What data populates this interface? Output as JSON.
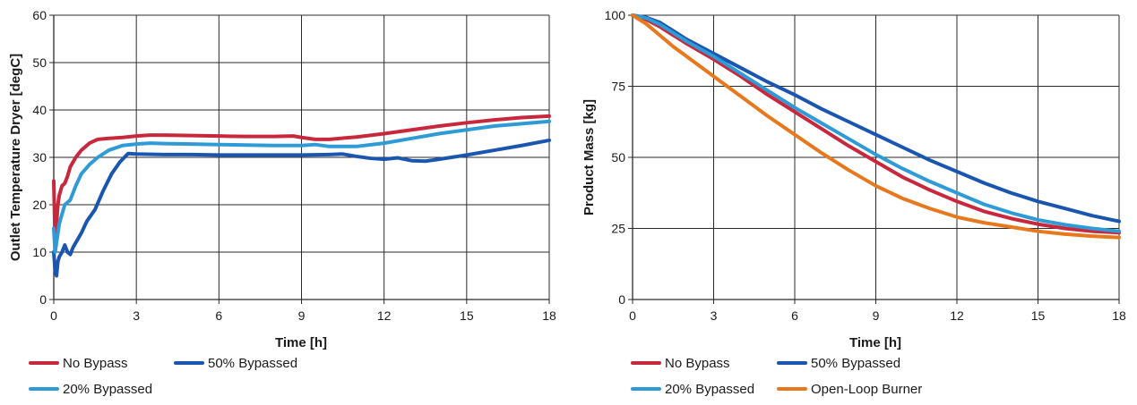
{
  "colors": {
    "no_bypass": "#c8283c",
    "bypass_50": "#1a56b0",
    "bypass_20": "#2e9bd6",
    "open_loop": "#e8781e",
    "grid": "#2a2a2a"
  },
  "chart_data": [
    {
      "type": "line",
      "xlabel": "Time [h]",
      "ylabel": "Outlet Temperature Dryer [degC]",
      "xlim": [
        0,
        18
      ],
      "ylim": [
        0,
        60
      ],
      "xticks": [
        0,
        3,
        6,
        9,
        12,
        15,
        18
      ],
      "yticks": [
        0,
        10,
        20,
        30,
        40,
        50,
        60
      ],
      "grid": true,
      "legend": "bottom",
      "series": [
        {
          "name": "No Bypass",
          "color_key": "no_bypass",
          "x": [
            0,
            0.05,
            0.1,
            0.15,
            0.2,
            0.3,
            0.4,
            0.5,
            0.6,
            0.8,
            1,
            1.3,
            1.6,
            2,
            2.5,
            3,
            3.5,
            4,
            5,
            6,
            7,
            8,
            8.7,
            9,
            9.5,
            10,
            11,
            12,
            13,
            14,
            15,
            16,
            17,
            18
          ],
          "y": [
            25,
            12,
            16,
            20,
            22,
            24,
            24.5,
            26,
            28,
            30,
            31.5,
            33,
            33.8,
            34,
            34.2,
            34.5,
            34.7,
            34.7,
            34.6,
            34.5,
            34.4,
            34.4,
            34.5,
            34.2,
            33.8,
            33.8,
            34.3,
            35,
            35.8,
            36.6,
            37.3,
            37.9,
            38.4,
            38.7
          ]
        },
        {
          "name": "50% Bypassed",
          "color_key": "bypass_50",
          "x": [
            0,
            0.05,
            0.1,
            0.15,
            0.2,
            0.3,
            0.4,
            0.5,
            0.6,
            0.7,
            0.8,
            1,
            1.2,
            1.5,
            1.8,
            2.1,
            2.4,
            2.7,
            3,
            4,
            5,
            6,
            7,
            8,
            9,
            10,
            10.5,
            11,
            11.5,
            12,
            12.5,
            13,
            13.5,
            14,
            15,
            16,
            17,
            18
          ],
          "y": [
            10,
            6,
            5,
            8,
            9,
            10,
            11.5,
            10,
            9.5,
            11,
            12,
            14,
            16.5,
            19,
            23,
            26.5,
            29,
            30.8,
            30.7,
            30.6,
            30.6,
            30.5,
            30.5,
            30.5,
            30.5,
            30.6,
            30.7,
            30.2,
            29.8,
            29.6,
            29.9,
            29.3,
            29.2,
            29.6,
            30.5,
            31.5,
            32.5,
            33.6
          ]
        },
        {
          "name": "20% Bypassed",
          "color_key": "bypass_20",
          "x": [
            0,
            0.05,
            0.1,
            0.2,
            0.3,
            0.4,
            0.5,
            0.6,
            0.8,
            1,
            1.3,
            1.6,
            2,
            2.5,
            3,
            3.5,
            4,
            5,
            6,
            7,
            8,
            9,
            9.5,
            10,
            11,
            12,
            13,
            14,
            15,
            16,
            17,
            18
          ],
          "y": [
            15,
            10,
            12,
            16,
            18,
            20,
            20.5,
            21,
            24,
            26.5,
            28.5,
            30,
            31.5,
            32.5,
            32.8,
            33,
            32.9,
            32.8,
            32.7,
            32.6,
            32.5,
            32.5,
            32.7,
            32.3,
            32.3,
            33,
            34,
            35,
            35.8,
            36.6,
            37.1,
            37.6
          ]
        }
      ]
    },
    {
      "type": "line",
      "xlabel": "Time [h]",
      "ylabel": "Product Mass [kg]",
      "xlim": [
        0,
        18
      ],
      "ylim": [
        0,
        100
      ],
      "xticks": [
        0,
        3,
        6,
        9,
        12,
        15,
        18
      ],
      "yticks": [
        0,
        25,
        50,
        75,
        100
      ],
      "grid": true,
      "legend": "bottom",
      "series": [
        {
          "name": "No Bypass",
          "color_key": "no_bypass",
          "x": [
            0,
            0.5,
            1,
            1.5,
            2,
            3,
            4,
            5,
            6,
            7,
            8,
            9,
            10,
            11,
            12,
            13,
            14,
            15,
            16,
            17,
            18
          ],
          "y": [
            100,
            98.5,
            96,
            93,
            90,
            84.5,
            78.5,
            72,
            66,
            60,
            54,
            48.5,
            43,
            38.5,
            34.5,
            31,
            28.5,
            26.5,
            25,
            24,
            23.5
          ]
        },
        {
          "name": "50% Bypassed",
          "color_key": "bypass_50",
          "x": [
            0,
            0.5,
            1,
            1.5,
            2,
            3,
            4,
            5,
            6,
            7,
            8,
            9,
            10,
            11,
            12,
            13,
            14,
            15,
            16,
            17,
            18
          ],
          "y": [
            100,
            99.2,
            97.5,
            94.5,
            91.5,
            86.5,
            81.5,
            76.5,
            72,
            67,
            62.5,
            58,
            53.5,
            49,
            45,
            41,
            37.5,
            34.5,
            32,
            29.5,
            27.5
          ]
        },
        {
          "name": "20% Bypassed",
          "color_key": "bypass_20",
          "x": [
            0,
            0.5,
            1,
            1.5,
            2,
            3,
            4,
            5,
            6,
            7,
            8,
            9,
            10,
            11,
            12,
            13,
            14,
            15,
            16,
            17,
            18
          ],
          "y": [
            100,
            99,
            96.8,
            93.8,
            90.8,
            85.5,
            79.5,
            73.5,
            67.5,
            62,
            56.5,
            51,
            46,
            41.5,
            37.5,
            33.5,
            30.5,
            28,
            26.3,
            25,
            24
          ]
        },
        {
          "name": "Open-Loop Burner",
          "color_key": "open_loop",
          "x": [
            0,
            0.5,
            1,
            1.5,
            2,
            3,
            4,
            5,
            6,
            7,
            8,
            9,
            10,
            11,
            12,
            13,
            14,
            15,
            16,
            17,
            18
          ],
          "y": [
            100,
            97,
            93,
            89,
            85.5,
            78.5,
            71.5,
            64.5,
            58,
            51.5,
            45.5,
            40,
            35.5,
            32,
            29,
            27,
            25.5,
            24,
            23,
            22.3,
            21.8
          ]
        }
      ]
    }
  ]
}
